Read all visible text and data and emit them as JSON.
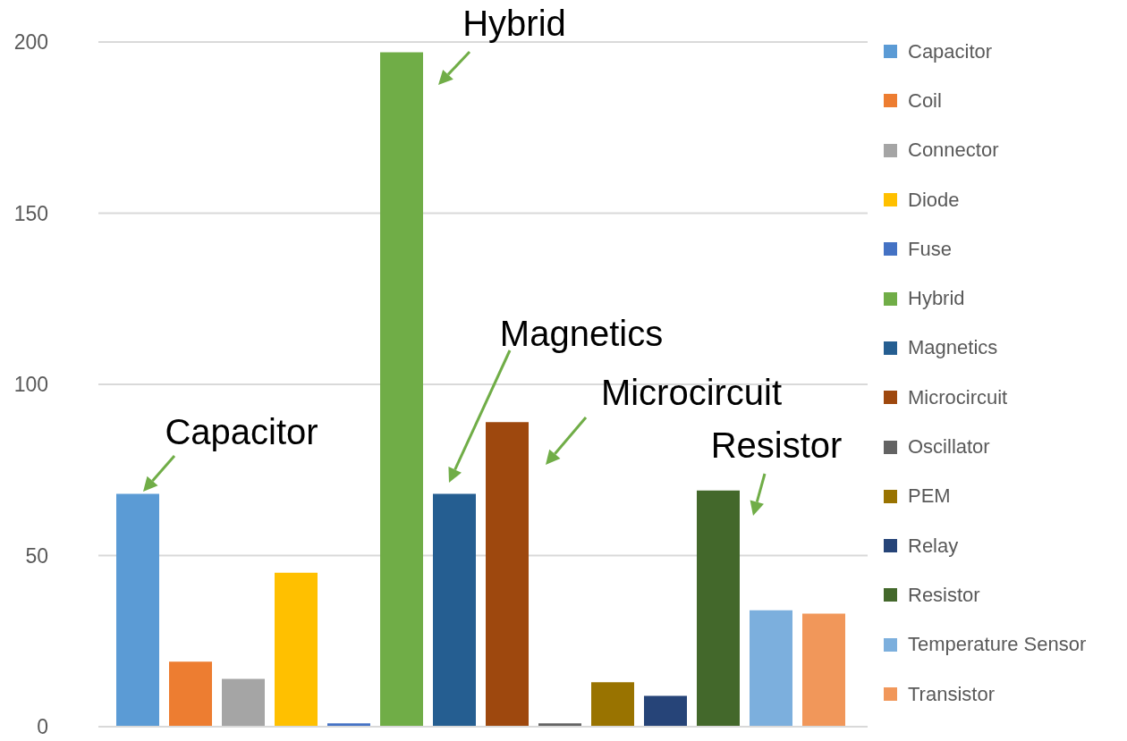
{
  "chart_data": {
    "type": "bar",
    "categories": [
      null
    ],
    "series": [
      {
        "name": "Capacitor",
        "color": "#5b9bd5",
        "values": [
          68
        ]
      },
      {
        "name": "Coil",
        "color": "#ed7d31",
        "values": [
          19
        ]
      },
      {
        "name": "Connector",
        "color": "#a5a5a5",
        "values": [
          14
        ]
      },
      {
        "name": "Diode",
        "color": "#ffc000",
        "values": [
          45
        ]
      },
      {
        "name": "Fuse",
        "color": "#4472c4",
        "values": [
          1
        ]
      },
      {
        "name": "Hybrid",
        "color": "#70ad47",
        "values": [
          197
        ]
      },
      {
        "name": "Magnetics",
        "color": "#255e91",
        "values": [
          68
        ]
      },
      {
        "name": "Microcircuit",
        "color": "#9e480e",
        "values": [
          89
        ]
      },
      {
        "name": "Oscillator",
        "color": "#636363",
        "values": [
          1
        ]
      },
      {
        "name": "PEM",
        "color": "#997300",
        "values": [
          13
        ]
      },
      {
        "name": "Relay",
        "color": "#264478",
        "values": [
          9
        ]
      },
      {
        "name": "Resistor",
        "color": "#43682b",
        "values": [
          69
        ]
      },
      {
        "name": "Temperature Sensor",
        "color": "#7cafdd",
        "values": [
          34
        ]
      },
      {
        "name": "Transistor",
        "color": "#f1975a",
        "values": [
          33
        ]
      }
    ],
    "ylim": [
      0,
      200
    ],
    "yticks": [
      0,
      50,
      100,
      150,
      200
    ],
    "grid": "y",
    "legend": "right",
    "annotations": [
      "Capacitor",
      "Hybrid",
      "Magnetics",
      "Microcircuit",
      "Resistor"
    ]
  }
}
